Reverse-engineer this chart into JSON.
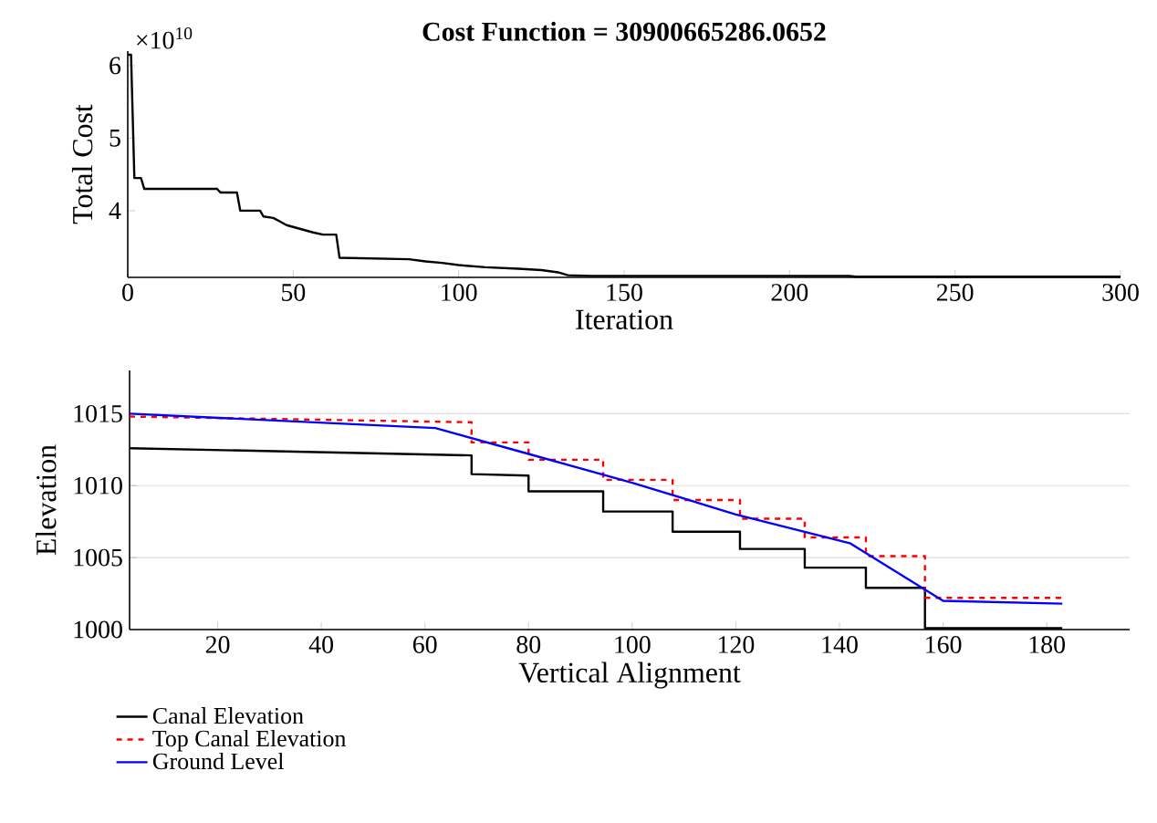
{
  "chart_data": [
    {
      "type": "line",
      "title": "Cost Function = 30900665286.0652",
      "xlabel": "Iteration",
      "ylabel": "Total Cost",
      "annotations": [
        "×10$^{10}$"
      ],
      "xlim": [
        0,
        300
      ],
      "ylim": [
        3.08,
        6.2
      ],
      "xticks": [
        0,
        50,
        100,
        150,
        200,
        250,
        300
      ],
      "yticks": [
        4,
        5,
        6
      ],
      "series": [
        {
          "color": "#000000",
          "line_style": "solid",
          "x": [
            0,
            1,
            2,
            4,
            5,
            27,
            28,
            33,
            34,
            40,
            41,
            44,
            46,
            48,
            52,
            56,
            59,
            63,
            64,
            85,
            90,
            95,
            100,
            108,
            118,
            125,
            130,
            133,
            140,
            218,
            220,
            300
          ],
          "values": [
            6.15,
            6.15,
            4.45,
            4.45,
            4.3,
            4.3,
            4.25,
            4.25,
            4.0,
            4.0,
            3.92,
            3.9,
            3.85,
            3.8,
            3.75,
            3.7,
            3.67,
            3.67,
            3.35,
            3.33,
            3.3,
            3.28,
            3.25,
            3.22,
            3.2,
            3.18,
            3.15,
            3.11,
            3.1,
            3.1,
            3.09,
            3.09
          ]
        }
      ]
    },
    {
      "type": "line",
      "xlabel": "Vertical Alignment",
      "ylabel": "Elevation",
      "xlim": [
        3,
        196
      ],
      "ylim": [
        1000,
        1018
      ],
      "xticks": [
        20,
        40,
        60,
        80,
        100,
        120,
        140,
        160,
        180
      ],
      "yticks": [
        1000,
        1005,
        1010,
        1015
      ],
      "grid": "y",
      "legend": "bottom left",
      "series": [
        {
          "name": "Canal Elevation",
          "color": "#000000",
          "line_style": "solid",
          "x": [
            3,
            69,
            69,
            80,
            80,
            94.4,
            94.4,
            107.8,
            107.8,
            120.8,
            120.8,
            133.3,
            133.3,
            145.1,
            145.1,
            156.5,
            156.5,
            183
          ],
          "values": [
            1012.6,
            1012.1,
            1010.8,
            1010.7,
            1009.6,
            1009.6,
            1008.2,
            1008.2,
            1006.8,
            1006.8,
            1005.6,
            1005.6,
            1004.3,
            1004.3,
            1002.9,
            1002.9,
            1000.1,
            1000.1
          ]
        },
        {
          "name": "Top Canal Elevation",
          "color": "#ff0000",
          "line_style": "dashed",
          "x": [
            3,
            69,
            69,
            80,
            80,
            94.4,
            94.4,
            107.8,
            107.8,
            120.8,
            120.8,
            133.3,
            133.3,
            145.1,
            145.1,
            156.5,
            156.5,
            183
          ],
          "values": [
            1014.8,
            1014.4,
            1013.0,
            1013.0,
            1011.8,
            1011.8,
            1010.4,
            1010.4,
            1009.0,
            1009.0,
            1007.7,
            1007.7,
            1006.4,
            1006.4,
            1005.1,
            1005.1,
            1002.2,
            1002.2
          ]
        },
        {
          "name": "Ground Level",
          "color": "#0000ff",
          "line_style": "solid",
          "x": [
            3,
            62,
            80,
            100,
            120,
            142,
            160,
            183
          ],
          "values": [
            1015.0,
            1014.0,
            1012.2,
            1010.2,
            1008.0,
            1006.0,
            1002.0,
            1001.8
          ]
        }
      ]
    }
  ]
}
